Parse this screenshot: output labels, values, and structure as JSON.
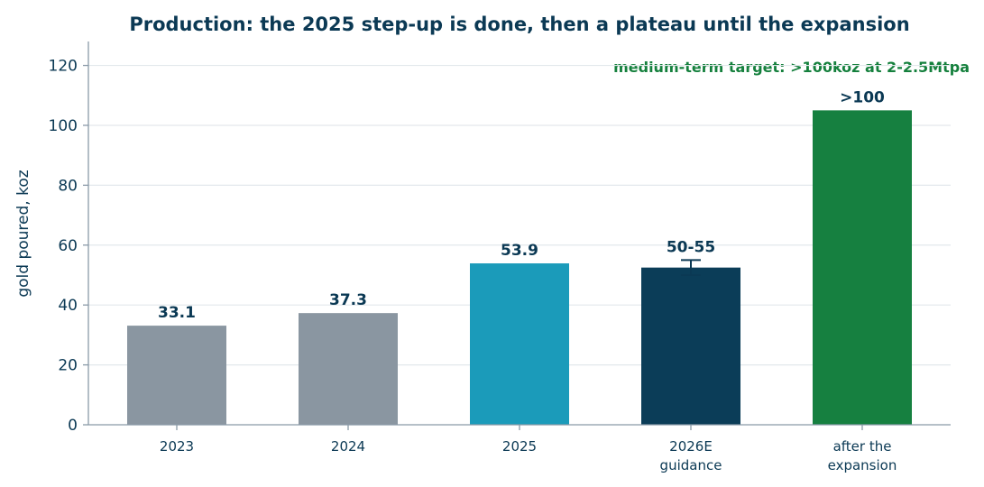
{
  "chart_data": {
    "type": "bar",
    "title": "Production: the 2025 step-up is done, then a plateau until the expansion",
    "annotation": "medium-term target: >100koz at 2-2.5Mtpa",
    "ylabel": "gold poured, koz",
    "xlabel": "",
    "ylim": [
      0,
      128
    ],
    "yticks": [
      0,
      20,
      40,
      60,
      80,
      100,
      120
    ],
    "grid": true,
    "categories": [
      [
        "2023"
      ],
      [
        "2024"
      ],
      [
        "2025"
      ],
      [
        "2026E",
        "guidance"
      ],
      [
        "after the",
        "expansion"
      ]
    ],
    "values": [
      33.1,
      37.3,
      53.9,
      52.5,
      105
    ],
    "error_range": [
      null,
      null,
      null,
      [
        50,
        55
      ],
      null
    ],
    "data_labels": [
      "33.1",
      "37.3",
      "53.9",
      "50-55",
      ">100"
    ],
    "colors": [
      "#8a96a1",
      "#8a96a1",
      "#1b9bba",
      "#0b3d58",
      "#168040"
    ]
  }
}
